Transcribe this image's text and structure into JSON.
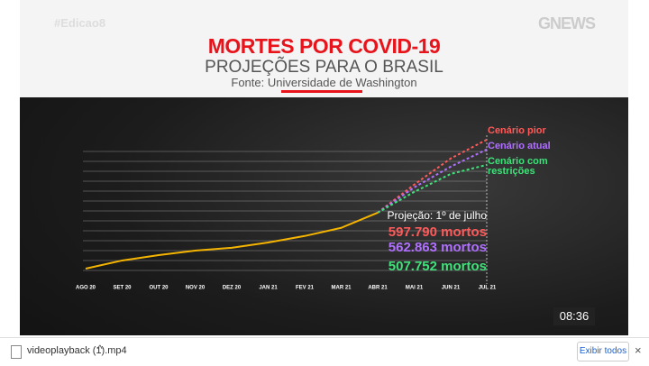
{
  "header": {
    "hashtag": "#Edicao8",
    "logo": "GNEWS",
    "title": "MORTES POR COVID-19",
    "subtitle": "PROJEÇÕES PARA O BRASIL",
    "source": "Fonte: Universidade de Washington"
  },
  "chart_data": {
    "type": "line",
    "categories": [
      "AGO 20",
      "SET 20",
      "OUT 20",
      "NOV 20",
      "DEZ 20",
      "JAN 21",
      "FEV 21",
      "MAR 21",
      "ABR 21",
      "MAI 21",
      "JUN 21",
      "JUL 21"
    ],
    "ylim": [
      80000,
      600000
    ],
    "annotation": "Projeção: 1º de julho",
    "series": [
      {
        "color": "#f5b400",
        "dotted": false,
        "values": [
          137900,
          166800,
          186000,
          202000,
          212000,
          231000,
          254000,
          283000,
          337000,
          null,
          null,
          null
        ]
      },
      {
        "name": "Cenário pior",
        "color": "#ff5a5a",
        "dotted": true,
        "values": [
          null,
          null,
          null,
          null,
          null,
          null,
          null,
          null,
          337000,
          437000,
          530000,
          597790
        ],
        "value_labels": [
          null,
          null,
          null,
          null,
          null,
          null,
          null,
          null,
          null,
          null,
          null,
          "597.790 mortos"
        ]
      },
      {
        "name": "Cenário atual",
        "color": "#b070ff",
        "dotted": true,
        "values": [
          null,
          null,
          null,
          null,
          null,
          null,
          null,
          null,
          337000,
          427000,
          501000,
          562863
        ],
        "value_labels": [
          null,
          null,
          null,
          null,
          null,
          null,
          null,
          null,
          null,
          null,
          null,
          "562.863 mortos"
        ]
      },
      {
        "name": "Cenário com restrições",
        "color": "#3ee27a",
        "dotted": true,
        "values": [
          null,
          null,
          null,
          null,
          null,
          null,
          null,
          null,
          337000,
          411000,
          475000,
          507752
        ],
        "value_labels": [
          null,
          null,
          null,
          null,
          null,
          null,
          null,
          null,
          null,
          null,
          null,
          "507.752 mortos"
        ]
      }
    ]
  },
  "player": {
    "time": "08:36"
  },
  "download_bar": {
    "file": "videoplayback (1).mp4",
    "show_all": "Exibir todos"
  }
}
